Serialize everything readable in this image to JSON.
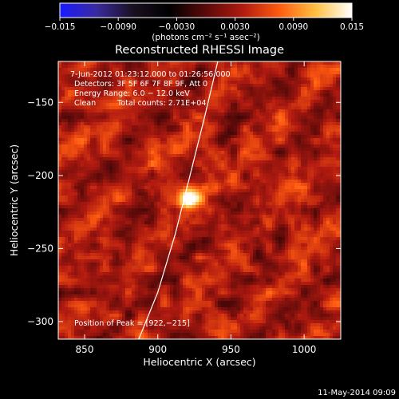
{
  "chart_data": {
    "type": "heatmap",
    "title": "Reconstructed RHESSI Image",
    "xlabel": "Heliocentric X (arcsec)",
    "ylabel": "Heliocentric Y (arcsec)",
    "xlim": [
      832,
      1025
    ],
    "ylim": [
      -312,
      -122
    ],
    "x_ticks": [
      850,
      900,
      950,
      1000
    ],
    "y_ticks": [
      -150,
      -200,
      -250,
      -300
    ],
    "colorbar": {
      "min": -0.015,
      "max": 0.015,
      "tick_values": [
        -0.015,
        -0.009,
        -0.003,
        0.003,
        0.009,
        0.015
      ],
      "tick_labels": [
        "−0.015",
        "−0.0090",
        "−0.0030",
        "0.0030",
        "0.0090",
        "0.015"
      ],
      "unit_label": "(photons cm⁻² s⁻¹ asec⁻²)",
      "colors": [
        "#1a1aff",
        "#3a2aa0",
        "#1a1020",
        "#000000",
        "#5a0a0a",
        "#b01a10",
        "#ff5a10",
        "#ffc040",
        "#ffffff"
      ]
    },
    "annotations": {
      "time_range": "7-Jun-2012 01:23:12.000 to 01:26:56.000",
      "detectors": "Detectors: 3F 5F 6F 7F 8F 9F, Att 0",
      "energy": "Energy Range: 6.0 − 12.0 keV",
      "clean": "Clean",
      "total_counts": "Total counts: 2.71E+04",
      "peak": "Position of Peak = [922,−215]"
    },
    "peak": {
      "x": 922,
      "y": -215,
      "value": 0.015,
      "fwhm_arcsec": 14
    },
    "background_level": 0.0035,
    "limb_curve": [
      [
        887,
        -312
      ],
      [
        900,
        -280
      ],
      [
        912,
        -240
      ],
      [
        922,
        -200
      ],
      [
        932,
        -160
      ],
      [
        941,
        -122
      ]
    ]
  },
  "footer": {
    "timestamp": "11-May-2014 09:09"
  }
}
